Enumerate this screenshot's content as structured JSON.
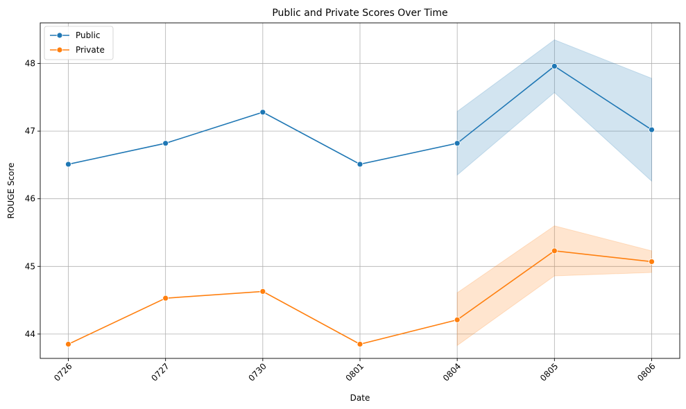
{
  "chart_data": {
    "type": "line",
    "title": "Public and Private Scores Over Time",
    "xlabel": "Date",
    "ylabel": "ROUGE Score",
    "categories": [
      "0726",
      "0727",
      "0730",
      "0801",
      "0804",
      "0805",
      "0806"
    ],
    "ylim": [
      43.64,
      48.6
    ],
    "yticks": [
      44,
      45,
      46,
      47,
      48
    ],
    "grid": true,
    "legend_position": "top-left",
    "series": [
      {
        "name": "Public",
        "color": "#1f77b4",
        "values": [
          46.51,
          46.82,
          47.28,
          46.51,
          46.82,
          47.96,
          47.02
        ],
        "band": [
          null,
          null,
          null,
          null,
          [
            46.35,
            47.29
          ],
          [
            47.57,
            48.35
          ],
          [
            46.26,
            47.78
          ]
        ]
      },
      {
        "name": "Private",
        "color": "#ff7f0e",
        "values": [
          43.85,
          44.53,
          44.63,
          43.85,
          44.21,
          45.23,
          45.07
        ],
        "band": [
          null,
          null,
          null,
          null,
          [
            43.83,
            44.61
          ],
          [
            44.86,
            45.6
          ],
          [
            44.91,
            45.23
          ]
        ]
      }
    ]
  }
}
